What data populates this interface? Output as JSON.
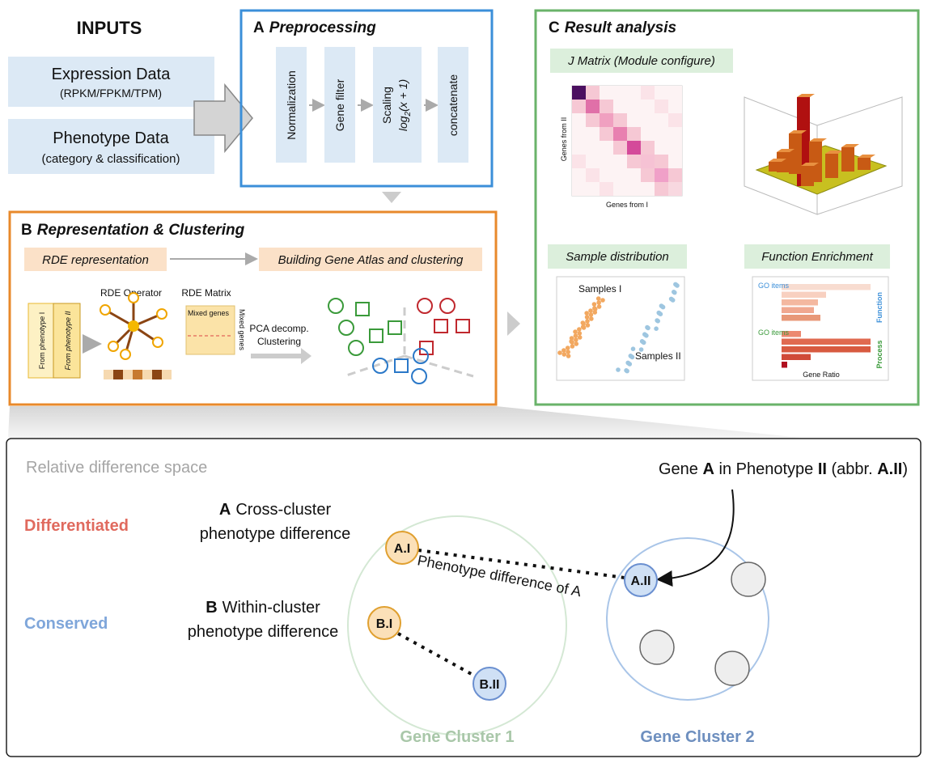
{
  "inputs": {
    "title": "INPUTS",
    "expression": {
      "label": "Expression Data",
      "sub": "(RPKM/FPKM/TPM)"
    },
    "phenotype": {
      "label": "Phenotype Data",
      "sub": "(category & classification)"
    }
  },
  "panel_a": {
    "letter": "A",
    "title": "Preprocessing",
    "steps": [
      "Normalization",
      "Gene filter",
      "Scaling",
      "concatenate"
    ],
    "formula": {
      "base": "log",
      "sub": "2",
      "arg": "(x + 1)"
    }
  },
  "panel_b": {
    "letter": "B",
    "title": "Representation & Clustering",
    "stage1": "RDE representation",
    "stage2": "Building Gene Atlas and clustering",
    "from1": "From phenotype I",
    "from2": "From phenotype II",
    "operator": "RDE Operator",
    "matrix": "RDE Matrix",
    "mixed_top": "Mixed genes",
    "mixed_side": "Mixed genes",
    "pca": [
      "PCA decomp.",
      "Clustering"
    ]
  },
  "panel_c": {
    "letter": "C",
    "title": "Result analysis",
    "jmatrix": "J Matrix (Module configure)",
    "y_label": "Genes from II",
    "x_label": "Genes from I",
    "sample_dist": "Sample distribution",
    "samples1": "Samples I",
    "samples2": "Samples II",
    "enrichment": "Function Enrichment",
    "go_items": [
      "GO items",
      "GO items"
    ],
    "function": "Function",
    "process": "Process",
    "gene_ratio": "Gene Ratio"
  },
  "bottom": {
    "space": "Relative difference space",
    "gene_note": [
      "Gene ",
      "A",
      " in Phenotype ",
      "II",
      " (abbr. ",
      "A.II",
      ")"
    ],
    "differentiated": "Differentiated",
    "conserved": "Conserved",
    "cross": {
      "letter": "A",
      "lines": [
        "Cross-cluster",
        "phenotype difference"
      ]
    },
    "within": {
      "letter": "B",
      "lines": [
        "Within-cluster",
        "phenotype difference"
      ]
    },
    "nodes": [
      "A.I",
      "A.II",
      "B.I",
      "B.II"
    ],
    "edge_label": "Phenotype difference of A",
    "clusters": [
      "Gene Cluster 1",
      "Gene Cluster 2"
    ]
  }
}
